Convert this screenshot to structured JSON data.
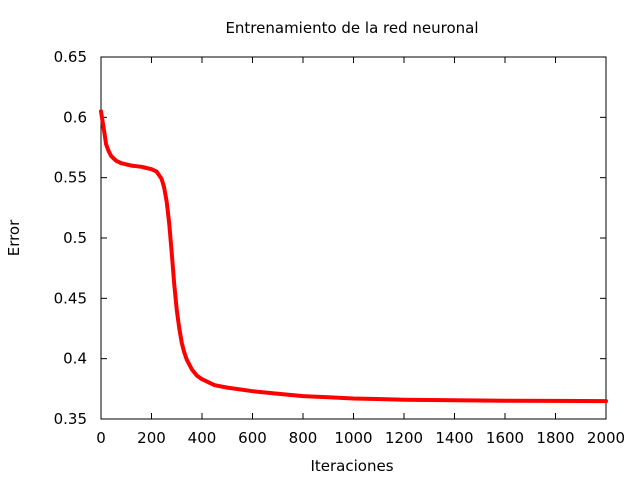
{
  "chart_data": {
    "type": "line",
    "title": "Entrenamiento de la red neuronal",
    "xlabel": "Iteraciones",
    "ylabel": "Error",
    "xlim": [
      0,
      2000
    ],
    "ylim": [
      0.35,
      0.65
    ],
    "xticks": [
      0,
      200,
      400,
      600,
      800,
      1000,
      1200,
      1400,
      1600,
      1800,
      2000
    ],
    "xtick_labels": [
      "0",
      "200",
      "400",
      "600",
      "800",
      "1000",
      "1200",
      "1400",
      "1600",
      "1800",
      "2000"
    ],
    "yticks": [
      0.35,
      0.4,
      0.45,
      0.5,
      0.55,
      0.6,
      0.65
    ],
    "ytick_labels": [
      "0.35",
      "0.4",
      "0.45",
      "0.5",
      "0.55",
      "0.6",
      "0.65"
    ],
    "grid": false,
    "legend": "none",
    "series_color": "#ff0000",
    "series": [
      {
        "x": [
          0,
          5,
          10,
          15,
          20,
          30,
          40,
          50,
          60,
          80,
          100,
          120,
          140,
          160,
          180,
          200,
          220,
          240,
          250,
          260,
          270,
          280,
          290,
          300,
          310,
          320,
          330,
          340,
          350,
          360,
          380,
          400,
          450,
          500,
          600,
          700,
          800,
          900,
          1000,
          1200,
          1400,
          1600,
          1800,
          2000
        ],
        "y": [
          0.605,
          0.598,
          0.592,
          0.585,
          0.578,
          0.572,
          0.568,
          0.566,
          0.564,
          0.562,
          0.561,
          0.56,
          0.5595,
          0.559,
          0.558,
          0.557,
          0.555,
          0.549,
          0.542,
          0.53,
          0.512,
          0.488,
          0.462,
          0.44,
          0.425,
          0.413,
          0.405,
          0.399,
          0.395,
          0.391,
          0.386,
          0.383,
          0.378,
          0.376,
          0.373,
          0.371,
          0.369,
          0.368,
          0.367,
          0.366,
          0.3655,
          0.3652,
          0.365,
          0.3648
        ]
      }
    ]
  }
}
